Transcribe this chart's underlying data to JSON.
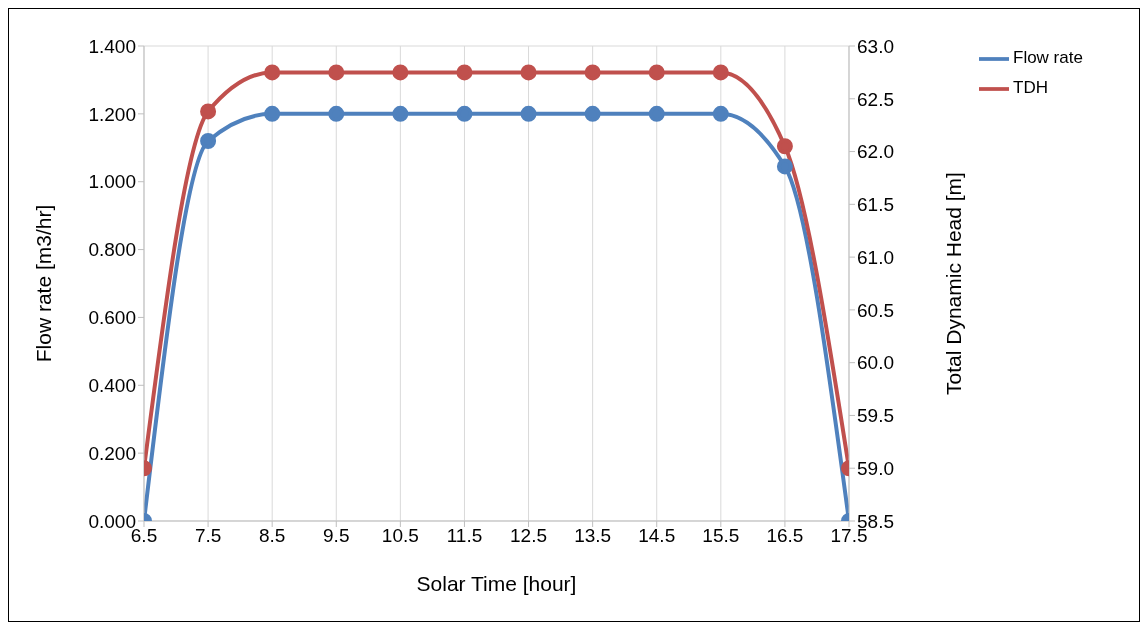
{
  "chart_data": {
    "type": "line",
    "xlabel": "Solar Time [hour]",
    "ylabel": "Flow rate [m3/hr]",
    "y2label": "Total Dynamic Head [m]",
    "x": [
      6.5,
      7.5,
      8.5,
      9.5,
      10.5,
      11.5,
      12.5,
      13.5,
      14.5,
      15.5,
      16.5,
      17.5
    ],
    "series": [
      {
        "name": "Flow rate",
        "color": "#4f81bd",
        "values": [
          0,
          1.12,
          1.2,
          1.2,
          1.2,
          1.2,
          1.2,
          1.2,
          1.2,
          1.2,
          1.045,
          0
        ]
      },
      {
        "name": "TDH",
        "color": "#c0504d",
        "axis": "y2",
        "values": [
          59.0,
          62.38,
          62.75,
          62.75,
          62.75,
          62.75,
          62.75,
          62.75,
          62.75,
          62.75,
          62.05,
          59.0
        ]
      }
    ],
    "xlim": [
      6.5,
      17.5
    ],
    "xticks": [
      {
        "value": 6.5,
        "label": "6.5"
      },
      {
        "value": 7.5,
        "label": "7.5"
      },
      {
        "value": 8.5,
        "label": "8.5"
      },
      {
        "value": 9.5,
        "label": "9.5"
      },
      {
        "value": 10.5,
        "label": "10.5"
      },
      {
        "value": 11.5,
        "label": "11.5"
      },
      {
        "value": 12.5,
        "label": "12.5"
      },
      {
        "value": 13.5,
        "label": "13.5"
      },
      {
        "value": 14.5,
        "label": "14.5"
      },
      {
        "value": 15.5,
        "label": "15.5"
      },
      {
        "value": 16.5,
        "label": "16.5"
      },
      {
        "value": 17.5,
        "label": "17.5"
      }
    ],
    "ylim": [
      0,
      1.4
    ],
    "yticks": [
      {
        "value": 0,
        "label": "0.000"
      },
      {
        "value": 0.2,
        "label": "0.200"
      },
      {
        "value": 0.4,
        "label": "0.400"
      },
      {
        "value": 0.6,
        "label": "0.600"
      },
      {
        "value": 0.8,
        "label": "0.800"
      },
      {
        "value": 1.0,
        "label": "1.000"
      },
      {
        "value": 1.2,
        "label": "1.200"
      },
      {
        "value": 1.4,
        "label": "1.400"
      }
    ],
    "y2lim": [
      58.5,
      63.0
    ],
    "y2ticks": [
      {
        "value": 58.5,
        "label": "58.5"
      },
      {
        "value": 59.0,
        "label": "59.0"
      },
      {
        "value": 59.5,
        "label": "59.5"
      },
      {
        "value": 60.0,
        "label": "60.0"
      },
      {
        "value": 60.5,
        "label": "60.5"
      },
      {
        "value": 61.0,
        "label": "61.0"
      },
      {
        "value": 61.5,
        "label": "61.5"
      },
      {
        "value": 62.0,
        "label": "62.0"
      },
      {
        "value": 62.5,
        "label": "62.5"
      },
      {
        "value": 63.0,
        "label": "63.0"
      }
    ],
    "grid": true,
    "legend": "top right",
    "marker": "circle",
    "line_style": "solid"
  }
}
